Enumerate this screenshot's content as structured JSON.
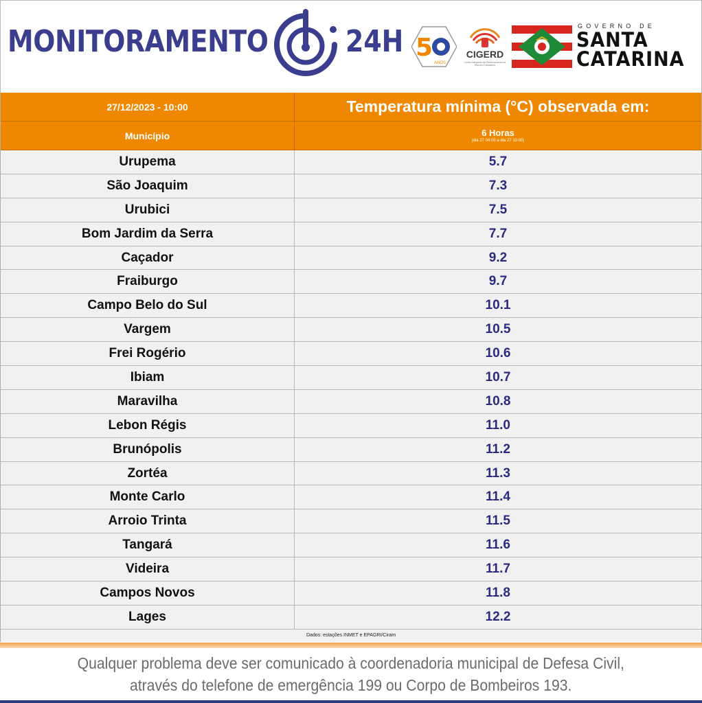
{
  "header": {
    "brand_main": "MONITORAMENTO",
    "brand_suffix": "24H",
    "logo50_text": "ANOS",
    "cigerd_name": "CIGERD",
    "cigerd_sub": "Centro Integrado de Gerenciamento de Riscos e Desastres",
    "gov_small": "GOVERNO DE",
    "gov_line1": "SANTA",
    "gov_line2": "CATARINA"
  },
  "table": {
    "datetime": "27/12/2023 - 10:00",
    "title": "Temperatura mínima (°C) observada em:",
    "col_municipio": "Município",
    "col_period": "6 Horas",
    "col_period_detail": "(dia 27 04:00 a dia 27 10:00)",
    "rows": [
      {
        "municipio": "Urupema",
        "temp": "5.7"
      },
      {
        "municipio": "São Joaquim",
        "temp": "7.3"
      },
      {
        "municipio": "Urubici",
        "temp": "7.5"
      },
      {
        "municipio": "Bom Jardim da Serra",
        "temp": "7.7"
      },
      {
        "municipio": "Caçador",
        "temp": "9.2"
      },
      {
        "municipio": "Fraiburgo",
        "temp": "9.7"
      },
      {
        "municipio": "Campo Belo do Sul",
        "temp": "10.1"
      },
      {
        "municipio": "Vargem",
        "temp": "10.5"
      },
      {
        "municipio": "Frei Rogério",
        "temp": "10.6"
      },
      {
        "municipio": "Ibiam",
        "temp": "10.7"
      },
      {
        "municipio": "Maravilha",
        "temp": "10.8"
      },
      {
        "municipio": "Lebon Régis",
        "temp": "11.0"
      },
      {
        "municipio": "Brunópolis",
        "temp": "11.2"
      },
      {
        "municipio": "Zortéa",
        "temp": "11.3"
      },
      {
        "municipio": "Monte Carlo",
        "temp": "11.4"
      },
      {
        "municipio": "Arroio Trinta",
        "temp": "11.5"
      },
      {
        "municipio": "Tangará",
        "temp": "11.6"
      },
      {
        "municipio": "Videira",
        "temp": "11.7"
      },
      {
        "municipio": "Campos Novos",
        "temp": "11.8"
      },
      {
        "municipio": "Lages",
        "temp": "12.2"
      }
    ],
    "source": "Dados: estações INMET e EPAGRI/Ciram"
  },
  "footer": {
    "line1": "Qualquer problema deve ser comunicado à coordenadoria municipal de Defesa Civil,",
    "line2": "através do telefone de emergência 199 ou Corpo de Bombeiros 193."
  },
  "colors": {
    "brand_blue": "#3b3d8f",
    "header_orange": "#ef8800",
    "value_blue": "#2b2a7f",
    "flag_red": "#d7261e",
    "flag_green": "#1f8a3a"
  }
}
